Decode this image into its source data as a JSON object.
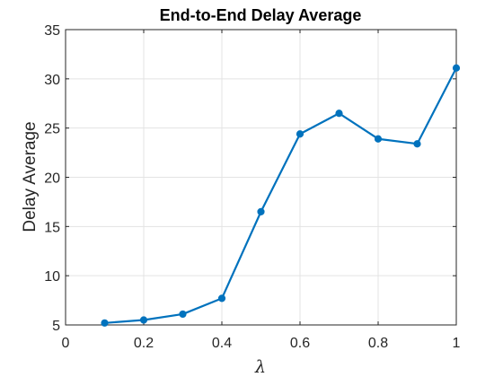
{
  "chart_data": {
    "type": "line",
    "title": "End-to-End Delay Average",
    "xlabel": "λ",
    "ylabel": "Delay Average",
    "xlim": [
      0,
      1
    ],
    "ylim": [
      5,
      35
    ],
    "xticks": [
      0,
      0.2,
      0.4,
      0.6,
      0.8,
      1
    ],
    "xtick_labels": [
      "0",
      "0.2",
      "0.4",
      "0.6",
      "0.8",
      "1"
    ],
    "yticks": [
      5,
      10,
      15,
      20,
      25,
      30,
      35
    ],
    "ytick_labels": [
      "5",
      "10",
      "15",
      "20",
      "25",
      "30",
      "35"
    ],
    "grid": true,
    "series": [
      {
        "color": "#0072BD",
        "marker": "circle",
        "x": [
          0.1,
          0.2,
          0.3,
          0.4,
          0.5,
          0.6,
          0.7,
          0.8,
          0.9,
          1.0
        ],
        "y": [
          5.2,
          5.5,
          6.1,
          7.7,
          16.5,
          24.4,
          26.5,
          23.9,
          23.4,
          31.1
        ]
      }
    ]
  }
}
